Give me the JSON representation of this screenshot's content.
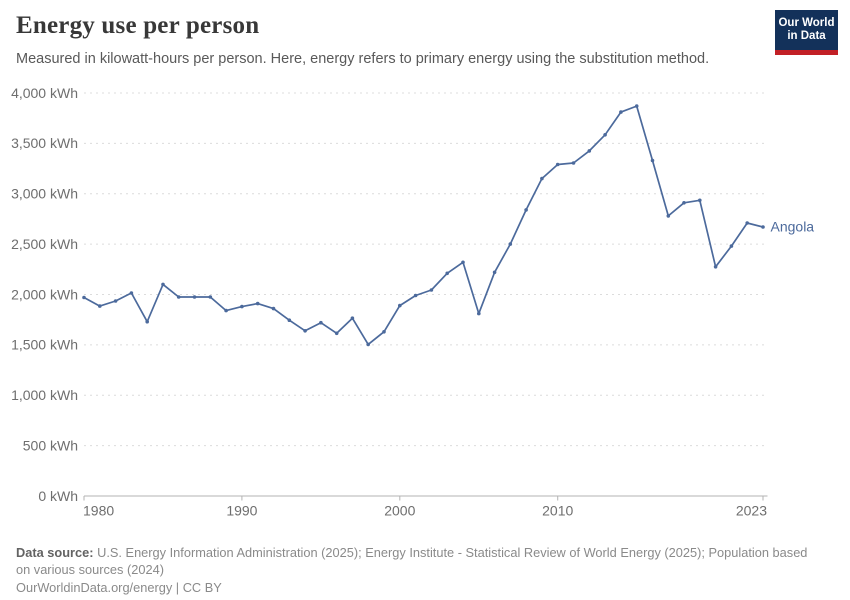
{
  "header": {
    "title": "Energy use per person",
    "subtitle": "Measured in kilowatt-hours per person. Here, energy refers to primary energy using the substitution method."
  },
  "logo": {
    "line1": "Our World",
    "line2": "in Data",
    "bg_color": "#13315a",
    "bar_color": "#c22026"
  },
  "chart_data": {
    "type": "line",
    "title": "Energy use per person",
    "unit": "kWh",
    "xlabel": "",
    "ylabel": "kWh",
    "xlim": [
      1980,
      2023
    ],
    "ylim": [
      0,
      4000
    ],
    "grid": "horizontal-dashed",
    "legend_position": "end-of-line-label",
    "x_ticks": [
      {
        "value": 1980,
        "label": "1980"
      },
      {
        "value": 1990,
        "label": "1990"
      },
      {
        "value": 2000,
        "label": "2000"
      },
      {
        "value": 2010,
        "label": "2010"
      },
      {
        "value": 2023,
        "label": "2023"
      }
    ],
    "y_ticks": [
      {
        "value": 0,
        "label": "0 kWh"
      },
      {
        "value": 500,
        "label": "500 kWh"
      },
      {
        "value": 1000,
        "label": "1,000 kWh"
      },
      {
        "value": 1500,
        "label": "1,500 kWh"
      },
      {
        "value": 2000,
        "label": "2,000 kWh"
      },
      {
        "value": 2500,
        "label": "2,500 kWh"
      },
      {
        "value": 3000,
        "label": "3,000 kWh"
      },
      {
        "value": 3500,
        "label": "3,500 kWh"
      },
      {
        "value": 4000,
        "label": "4,000 kWh"
      }
    ],
    "series": [
      {
        "name": "Angola",
        "color": "#4C6A9C",
        "x": [
          1980,
          1981,
          1982,
          1983,
          1984,
          1985,
          1986,
          1987,
          1988,
          1989,
          1990,
          1991,
          1992,
          1993,
          1994,
          1995,
          1996,
          1997,
          1998,
          1999,
          2000,
          2001,
          2002,
          2003,
          2004,
          2005,
          2006,
          2007,
          2008,
          2009,
          2010,
          2011,
          2012,
          2013,
          2014,
          2015,
          2016,
          2017,
          2018,
          2019,
          2020,
          2021,
          2022,
          2023
        ],
        "values": [
          1970,
          1885,
          1935,
          2015,
          1730,
          2100,
          1975,
          1975,
          1975,
          1840,
          1880,
          1910,
          1860,
          1745,
          1640,
          1720,
          1615,
          1765,
          1505,
          1630,
          1890,
          1990,
          2045,
          2210,
          2320,
          1810,
          2220,
          2500,
          2840,
          3150,
          3290,
          3305,
          3425,
          3585,
          3810,
          3870,
          3330,
          2780,
          2910,
          2935,
          2275,
          2480,
          2710,
          2670
        ]
      }
    ]
  },
  "footer": {
    "source_label": "Data source:",
    "source_text": " U.S. Energy Information Administration (2025); Energy Institute - Statistical Review of World Energy (2025); Population based on various sources (2024)",
    "license_link": "OurWorldinData.org/energy",
    "license_sep": " | ",
    "license_cc": "CC BY"
  },
  "colors": {
    "line": "#4C6A9C",
    "grid": "#dcdcdc",
    "axis": "#b3b3b3",
    "axis_text": "#6e6e6e"
  }
}
